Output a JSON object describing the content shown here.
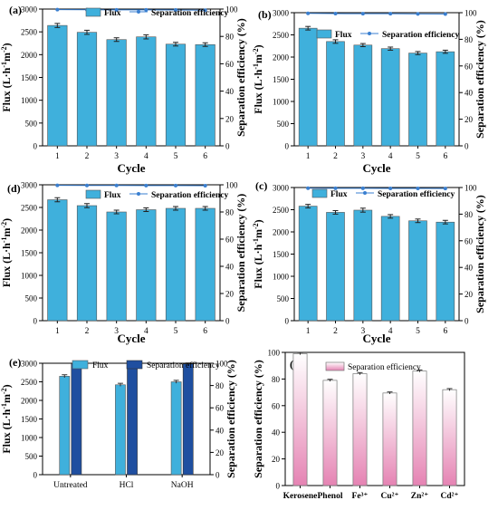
{
  "colors": {
    "bar": "#3fb0dc",
    "bar_dark": "#1f4fa0",
    "line": "#3a7fd0",
    "pink_top": "#ffffff",
    "pink_bottom": "#e583b3"
  },
  "chart_data": [
    {
      "id": "a",
      "panel_label": "(a)",
      "type": "bar",
      "categories": [
        "1",
        "2",
        "3",
        "4",
        "5",
        "6"
      ],
      "series": [
        {
          "name": "Flux",
          "values": [
            2640,
            2490,
            2330,
            2390,
            2230,
            2220
          ],
          "errors": [
            45,
            45,
            40,
            45,
            40,
            40
          ]
        },
        {
          "name": "Separation efficiency",
          "values": [
            99.6,
            99.5,
            99.4,
            99.4,
            99.3,
            99.2
          ],
          "axis": "right",
          "type": "line"
        }
      ],
      "xlabel": "Cycle",
      "ylabel": "Flux (L·h⁻¹m⁻²)",
      "y2label": "Separation efficiency (%)",
      "ylim": [
        0,
        3000
      ],
      "yticks": [
        "0",
        "500",
        "1000",
        "1500",
        "2000",
        "2500",
        "3000"
      ],
      "y2lim": [
        0,
        100
      ],
      "y2ticks": [
        "0",
        "20",
        "40",
        "60",
        "80",
        "100"
      ],
      "legend": "top-right"
    },
    {
      "id": "b",
      "panel_label": "(b)",
      "type": "bar",
      "categories": [
        "1",
        "2",
        "3",
        "4",
        "5",
        "6"
      ],
      "series": [
        {
          "name": "Flux",
          "values": [
            2650,
            2350,
            2270,
            2190,
            2090,
            2120
          ],
          "errors": [
            40,
            40,
            35,
            35,
            35,
            35
          ]
        },
        {
          "name": "Separation efficiency",
          "values": [
            99.5,
            99.3,
            99.2,
            99.2,
            99.1,
            99.0
          ],
          "axis": "right",
          "type": "line"
        }
      ],
      "xlabel": "Cycle",
      "ylabel": "Flux (L·h⁻¹m⁻²)",
      "y2label": "Separation efficiency (%)",
      "ylim": [
        0,
        3000
      ],
      "yticks": [
        "0",
        "500",
        "1000",
        "1500",
        "2000",
        "2500",
        "3000"
      ],
      "y2lim": [
        0,
        100
      ],
      "y2ticks": [
        "0",
        "20",
        "40",
        "60",
        "80",
        "100"
      ],
      "legend": "top-right"
    },
    {
      "id": "d",
      "panel_label": "(d)",
      "type": "bar",
      "categories": [
        "1",
        "2",
        "3",
        "4",
        "5",
        "6"
      ],
      "series": [
        {
          "name": "Flux",
          "values": [
            2670,
            2540,
            2400,
            2450,
            2480,
            2480
          ],
          "errors": [
            45,
            45,
            40,
            40,
            40,
            40
          ]
        },
        {
          "name": "Separation efficiency",
          "values": [
            99.6,
            99.5,
            99.5,
            99.4,
            99.4,
            99.3
          ],
          "axis": "right",
          "type": "line"
        }
      ],
      "xlabel": "Cycle",
      "ylabel": "Flux (L·h⁻¹m⁻²)",
      "y2label": "Separation efficiency (%)",
      "ylim": [
        0,
        3000
      ],
      "yticks": [
        "0",
        "500",
        "1000",
        "1500",
        "2000",
        "2500",
        "3000"
      ],
      "y2lim": [
        0,
        100
      ],
      "y2ticks": [
        "0",
        "20",
        "40",
        "60",
        "80",
        "100"
      ],
      "legend": "top-right"
    },
    {
      "id": "c",
      "panel_label": "(c)",
      "type": "bar",
      "categories": [
        "1",
        "2",
        "3",
        "4",
        "5",
        "6"
      ],
      "series": [
        {
          "name": "Flux",
          "values": [
            2580,
            2440,
            2490,
            2350,
            2250,
            2220
          ],
          "errors": [
            40,
            40,
            45,
            40,
            40,
            40
          ]
        },
        {
          "name": "Separation efficiency",
          "values": [
            99.5,
            99.4,
            99.4,
            99.3,
            99.3,
            99.2
          ],
          "axis": "right",
          "type": "line"
        }
      ],
      "xlabel": "Cycle",
      "ylabel": "Flux (L·h⁻¹m⁻²)",
      "y2label": "Separation efficiency (%)",
      "ylim": [
        0,
        3000
      ],
      "yticks": [
        "0",
        "500",
        "1000",
        "1500",
        "2000",
        "2500",
        "3000"
      ],
      "y2lim": [
        0,
        100
      ],
      "y2ticks": [
        "0",
        "20",
        "40",
        "60",
        "80",
        "100"
      ],
      "legend": "top-right"
    },
    {
      "id": "e",
      "panel_label": "(e)",
      "type": "bar",
      "categories": [
        "Untreated",
        "HCl",
        "NaOH"
      ],
      "series": [
        {
          "name": "Flux",
          "values": [
            2650,
            2420,
            2500
          ],
          "errors": [
            40,
            40,
            40
          ]
        },
        {
          "name": "Separation efficiency",
          "values": [
            99.6,
            99.3,
            99.4
          ],
          "errors": [
            0.8,
            0.8,
            0.8
          ],
          "axis": "right"
        }
      ],
      "xlabel": "",
      "ylabel": "Flux (L·h⁻¹m⁻²)",
      "y2label": "Separation efficiency (%)",
      "ylim": [
        0,
        3000
      ],
      "yticks": [
        "0",
        "500",
        "1000",
        "1500",
        "2000",
        "2500",
        "3000"
      ],
      "y2lim": [
        0,
        100
      ],
      "y2ticks": [
        "0",
        "20",
        "40",
        "60",
        "80",
        "100"
      ],
      "legend": "top"
    },
    {
      "id": "f",
      "panel_label": "(f)",
      "type": "bar",
      "categories": [
        "Kerosene",
        "Phenol",
        "Fe³⁺",
        "Cu²⁺",
        "Zn²⁺",
        "Cd²⁺"
      ],
      "series": [
        {
          "name": "Separation efficiency",
          "values": [
            99.0,
            79.0,
            84.0,
            69.5,
            86.0,
            72.0
          ],
          "errors": [
            0.8,
            0.8,
            0.8,
            0.8,
            0.8,
            0.8
          ]
        }
      ],
      "xlabel": "",
      "ylabel": "Separation efficiency (%)",
      "ylim": [
        0,
        100
      ],
      "yticks": [
        "0",
        "20",
        "40",
        "60",
        "80",
        "100"
      ],
      "legend": "top-right"
    }
  ]
}
